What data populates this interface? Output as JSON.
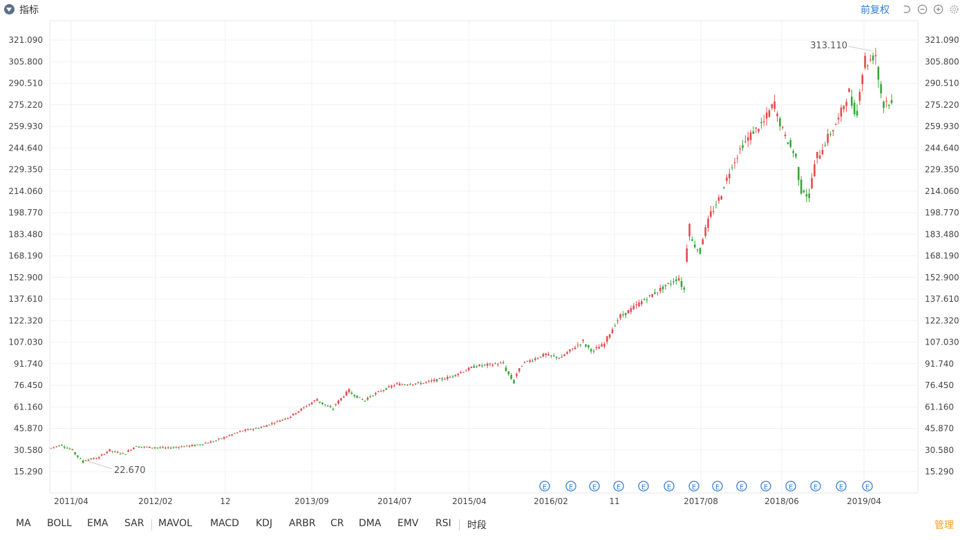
{
  "header": {
    "title": "指标",
    "adjust_label": "前复权"
  },
  "indicators": [
    "MA",
    "BOLL",
    "EMA",
    "SAR",
    "MAVOL",
    "MACD",
    "KDJ",
    "ARBR",
    "CR",
    "DMA",
    "EMV",
    "RSI",
    "时段"
  ],
  "manage_label": "管理",
  "colors": {
    "up": "#e24c4c",
    "down": "#36a536",
    "accent": "#2f7ed8",
    "grid": "#eef1f4"
  },
  "chart_data": {
    "type": "candlestick",
    "y_ticks": [
      "321.090",
      "305.800",
      "290.510",
      "275.220",
      "259.930",
      "244.640",
      "229.350",
      "214.060",
      "198.770",
      "183.480",
      "168.190",
      "152.900",
      "137.610",
      "122.320",
      "107.030",
      "91.740",
      "76.450",
      "61.160",
      "45.870",
      "30.580",
      "15.290"
    ],
    "ylim": [
      0,
      336.38
    ],
    "x_ticks": [
      "2011/04",
      "2012/02",
      "12",
      "2013/09",
      "2014/07",
      "2015/04",
      "2016/02",
      "11",
      "2017/08",
      "2018/06",
      "2019/04"
    ],
    "price_points": [
      {
        "t": 0,
        "v": 32
      },
      {
        "t": 4,
        "v": 34
      },
      {
        "t": 8,
        "v": 31
      },
      {
        "t": 12,
        "v": 23
      },
      {
        "t": 18,
        "v": 25
      },
      {
        "t": 22,
        "v": 30
      },
      {
        "t": 28,
        "v": 28
      },
      {
        "t": 32,
        "v": 33
      },
      {
        "t": 44,
        "v": 32
      },
      {
        "t": 55,
        "v": 34
      },
      {
        "t": 62,
        "v": 37
      },
      {
        "t": 72,
        "v": 44
      },
      {
        "t": 80,
        "v": 47
      },
      {
        "t": 90,
        "v": 54
      },
      {
        "t": 100,
        "v": 66
      },
      {
        "t": 106,
        "v": 60
      },
      {
        "t": 112,
        "v": 72
      },
      {
        "t": 118,
        "v": 66
      },
      {
        "t": 124,
        "v": 72
      },
      {
        "t": 130,
        "v": 77
      },
      {
        "t": 140,
        "v": 78
      },
      {
        "t": 150,
        "v": 82
      },
      {
        "t": 160,
        "v": 90
      },
      {
        "t": 170,
        "v": 92
      },
      {
        "t": 174,
        "v": 80
      },
      {
        "t": 178,
        "v": 92
      },
      {
        "t": 186,
        "v": 98
      },
      {
        "t": 192,
        "v": 96
      },
      {
        "t": 200,
        "v": 107
      },
      {
        "t": 204,
        "v": 101
      },
      {
        "t": 208,
        "v": 105
      },
      {
        "t": 214,
        "v": 124
      },
      {
        "t": 222,
        "v": 135
      },
      {
        "t": 230,
        "v": 145
      },
      {
        "t": 236,
        "v": 152
      },
      {
        "t": 238,
        "v": 146
      },
      {
        "t": 240,
        "v": 182
      },
      {
        "t": 244,
        "v": 172
      },
      {
        "t": 248,
        "v": 195
      },
      {
        "t": 252,
        "v": 210
      },
      {
        "t": 256,
        "v": 230
      },
      {
        "t": 260,
        "v": 245
      },
      {
        "t": 264,
        "v": 255
      },
      {
        "t": 268,
        "v": 262
      },
      {
        "t": 272,
        "v": 275
      },
      {
        "t": 276,
        "v": 255
      },
      {
        "t": 280,
        "v": 240
      },
      {
        "t": 282,
        "v": 220
      },
      {
        "t": 285,
        "v": 210
      },
      {
        "t": 288,
        "v": 235
      },
      {
        "t": 292,
        "v": 250
      },
      {
        "t": 296,
        "v": 263
      },
      {
        "t": 300,
        "v": 282
      },
      {
        "t": 303,
        "v": 270
      },
      {
        "t": 306,
        "v": 302
      },
      {
        "t": 310,
        "v": 310
      },
      {
        "t": 313,
        "v": 280
      },
      {
        "t": 316,
        "v": 276
      }
    ],
    "candle_count": 317,
    "annotations": [
      {
        "label": "313.110",
        "t": 309,
        "value": 313.11,
        "kind": "high"
      },
      {
        "label": "22.670",
        "t": 14,
        "value": 22.67,
        "kind": "low"
      }
    ],
    "event_marker": "E",
    "event_marker_count": 14
  }
}
